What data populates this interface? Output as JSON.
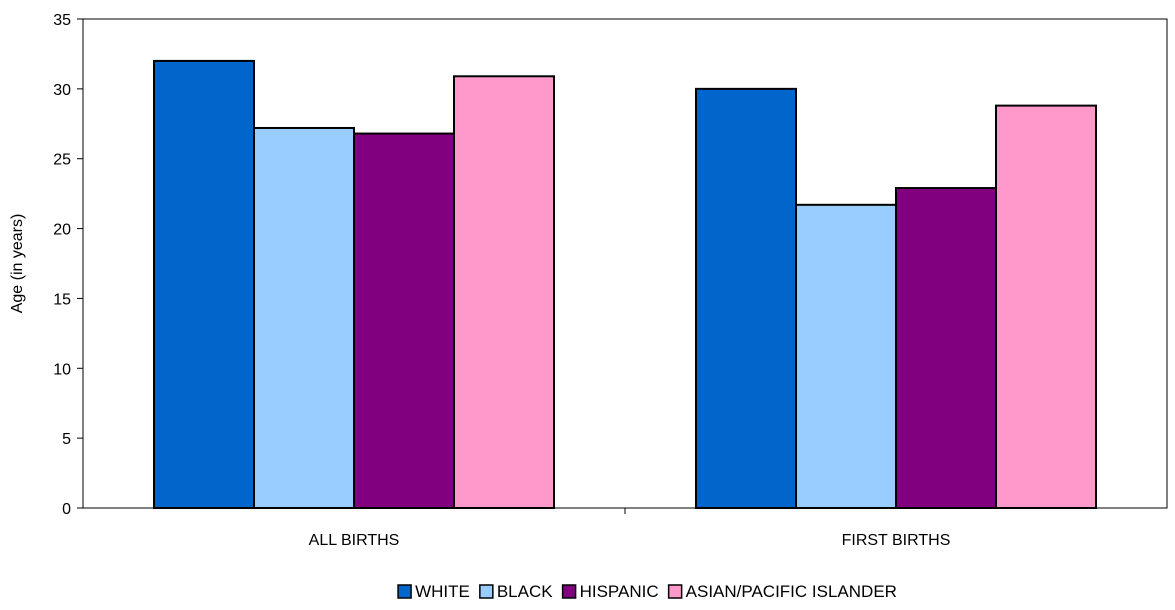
{
  "chart_data": {
    "type": "bar",
    "title": "",
    "xlabel": "",
    "ylabel": "Age (in years)",
    "ylim": [
      0,
      35
    ],
    "yticks": [
      0,
      5,
      10,
      15,
      20,
      25,
      30,
      35
    ],
    "categories": [
      "ALL BIRTHS",
      "FIRST BIRTHS"
    ],
    "series": [
      {
        "name": "WHITE",
        "color": "#0066CC",
        "values": [
          32.0,
          30.0
        ]
      },
      {
        "name": "BLACK",
        "color": "#99CCFF",
        "values": [
          27.2,
          21.7
        ]
      },
      {
        "name": "HISPANIC",
        "color": "#800080",
        "values": [
          26.8,
          22.9
        ]
      },
      {
        "name": "ASIAN/PACIFIC ISLANDER",
        "color": "#FF99CC",
        "values": [
          30.9,
          28.8
        ]
      }
    ],
    "grid": false,
    "legend_position": "bottom"
  }
}
